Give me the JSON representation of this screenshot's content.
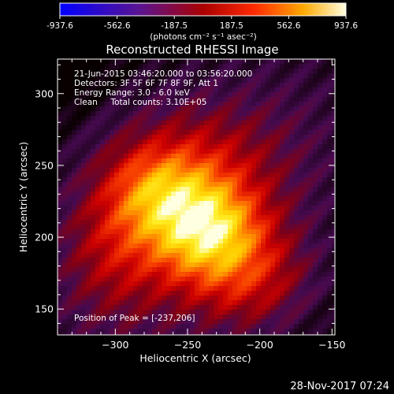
{
  "chart_data": {
    "type": "heatmap",
    "title": "Reconstructed RHESSI Image",
    "colorbar": {
      "ticks": [
        "-937.6",
        "-562.6",
        "-187.5",
        "187.5",
        "562.6",
        "937.6"
      ],
      "unit_label": "(photons cm⁻² s⁻¹ asec⁻²)",
      "range": [
        -937.6,
        937.6
      ],
      "colormap": "blue-purple-red-orange-yellow-white"
    },
    "xlabel": "Heliocentric X (arcsec)",
    "ylabel": "Heliocentric Y (arcsec)",
    "xlim": [
      -340,
      -148
    ],
    "ylim": [
      132,
      324
    ],
    "xticks": [
      -300,
      -250,
      -200,
      -150
    ],
    "yticks": [
      150,
      200,
      250,
      300
    ],
    "info_lines": [
      "21-Jun-2015 03:46:20.000 to 03:56:20.000",
      "Detectors: 3F 5F 6F 7F 8F 9F, Att 1",
      "Energy Range: 3.0 - 6.0 keV",
      "Clean     Total counts: 3.10E+05"
    ],
    "peak_label": "Position of Peak = [-237,206]",
    "peak": [
      -237,
      206
    ],
    "grid": false
  },
  "footer": {
    "date_stamp": "28-Nov-2017 07:24"
  }
}
